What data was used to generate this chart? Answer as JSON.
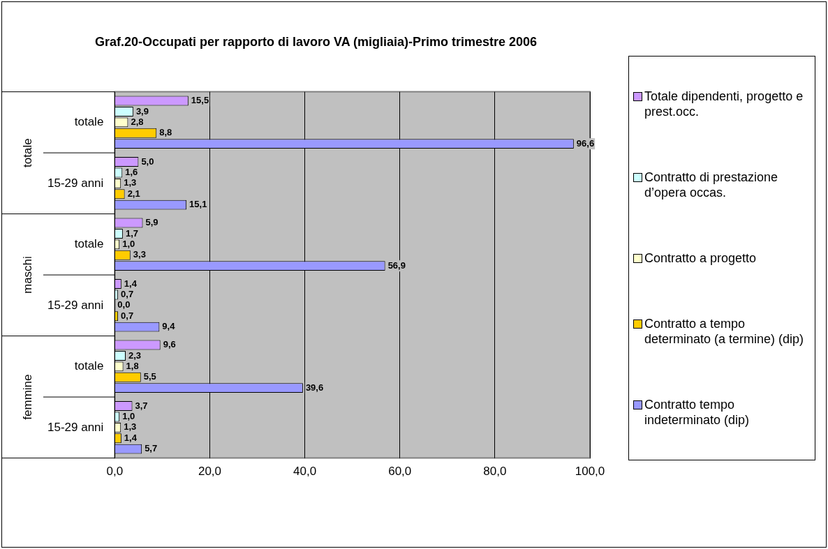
{
  "chart_data": {
    "type": "bar",
    "orientation": "horizontal",
    "title": "Graf.20-Occupati per rapporto di lavoro VA (migliaia)-Primo trimestre 2006",
    "categories": [
      "totale",
      "15-29 anni",
      "totale",
      "15-29 anni",
      "totale",
      "15-29 anni"
    ],
    "annotations": [
      "totale",
      "maschi",
      "femmine"
    ],
    "series": [
      {
        "name": "Totale dipendenti, progetto e prest.occ.",
        "color": "#cc99ff",
        "values": [
          15.5,
          5.0,
          5.9,
          1.4,
          9.6,
          3.7
        ],
        "value_labels": [
          "15,5",
          "5,0",
          "5,9",
          "1,4",
          "9,6",
          "3,7"
        ]
      },
      {
        "name": "Contratto di prestazione d’opera occas.",
        "color": "#ccffff",
        "values": [
          3.9,
          1.6,
          1.7,
          0.7,
          2.3,
          1.0
        ],
        "value_labels": [
          "3,9",
          "1,6",
          "1,7",
          "0,7",
          "2,3",
          "1,0"
        ]
      },
      {
        "name": "Contratto a progetto",
        "color": "#ffffcc",
        "values": [
          2.8,
          1.3,
          1.0,
          0.0,
          1.8,
          1.3
        ],
        "value_labels": [
          "2,8",
          "1,3",
          "1,0",
          "0,0",
          "1,8",
          "1,3"
        ]
      },
      {
        "name": "Contratto a tempo determinato (a termine) (dip)",
        "color": "#ffcc00",
        "values": [
          8.8,
          2.1,
          3.3,
          0.7,
          5.5,
          1.4
        ],
        "value_labels": [
          "8,8",
          "2,1",
          "3,3",
          "0,7",
          "5,5",
          "1,4"
        ]
      },
      {
        "name": "Contratto tempo indeterminato (dip)",
        "color": "#9999ff",
        "values": [
          96.6,
          15.1,
          56.9,
          9.4,
          39.6,
          5.7
        ],
        "value_labels": [
          "96,6",
          "15,1",
          "56,9",
          "9,4",
          "39,6",
          "5,7"
        ]
      }
    ],
    "xlim": [
      0,
      100
    ],
    "xticks": [
      {
        "value": 0,
        "label": "0,0"
      },
      {
        "value": 20,
        "label": "20,0"
      },
      {
        "value": 40,
        "label": "40,0"
      },
      {
        "value": 60,
        "label": "60,0"
      },
      {
        "value": 80,
        "label": "80,0"
      },
      {
        "value": 100,
        "label": "100,0"
      }
    ],
    "grid": "x",
    "legend": "right"
  }
}
